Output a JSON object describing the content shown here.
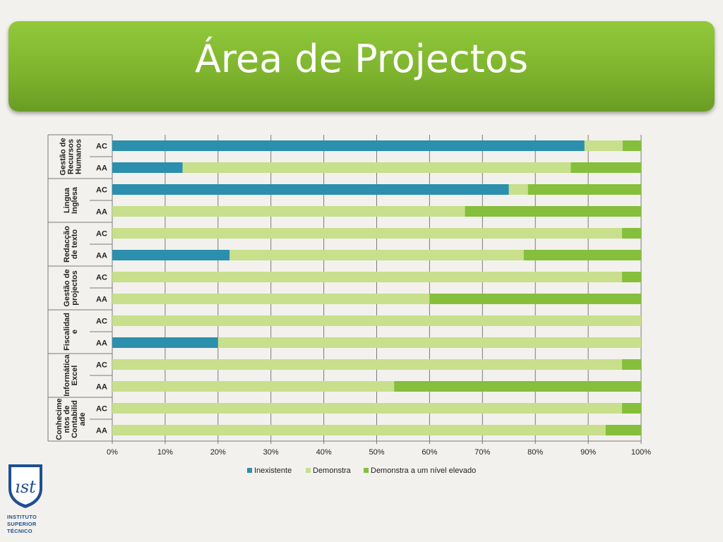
{
  "title": "Área de Projectos",
  "logo": {
    "monogram": "ıst",
    "lines": [
      "INSTITUTO",
      "SUPERIOR",
      "TÉCNICO"
    ]
  },
  "chart_data": {
    "type": "bar",
    "orientation": "horizontal",
    "stacked": "percent",
    "xlim": [
      0,
      100
    ],
    "x_ticks": [
      "0%",
      "10%",
      "20%",
      "30%",
      "40%",
      "50%",
      "60%",
      "70%",
      "80%",
      "90%",
      "100%"
    ],
    "grid": true,
    "legend_position": "bottom",
    "series": [
      {
        "name": "Inexistente",
        "color": "#2b8fad"
      },
      {
        "name": "Demonstra",
        "color": "#c8df8c"
      },
      {
        "name": "Demonstra a um nível elevado",
        "color": "#85bf3b"
      }
    ],
    "groups": [
      {
        "name_lines": [
          "Gestão de",
          "Recursos",
          "Humanos"
        ],
        "rows": [
          {
            "label": "AC",
            "values": [
              89.3,
              7.2,
              3.5
            ]
          },
          {
            "label": "AA",
            "values": [
              13.3,
              73.4,
              13.3
            ]
          }
        ]
      },
      {
        "name_lines": [
          "Lingua",
          "Inglesa"
        ],
        "rows": [
          {
            "label": "AC",
            "values": [
              75.0,
              3.6,
              21.4
            ]
          },
          {
            "label": "AA",
            "values": [
              0,
              66.7,
              33.3
            ]
          }
        ]
      },
      {
        "name_lines": [
          "Redacção",
          "de texto"
        ],
        "rows": [
          {
            "label": "AC",
            "values": [
              0,
              96.4,
              3.6
            ]
          },
          {
            "label": "AA",
            "values": [
              22.2,
              55.6,
              22.2
            ]
          }
        ]
      },
      {
        "name_lines": [
          "Gestão de",
          "projectos"
        ],
        "rows": [
          {
            "label": "AC",
            "values": [
              0,
              96.4,
              3.6
            ]
          },
          {
            "label": "AA",
            "values": [
              0,
              60.0,
              40.0
            ]
          }
        ]
      },
      {
        "name_lines": [
          "Fiscalidad",
          "e"
        ],
        "rows": [
          {
            "label": "AC",
            "values": [
              0,
              100,
              0
            ]
          },
          {
            "label": "AA",
            "values": [
              20.0,
              80.0,
              0
            ]
          }
        ]
      },
      {
        "name_lines": [
          "Informática",
          "Excel"
        ],
        "rows": [
          {
            "label": "AC",
            "values": [
              0,
              96.4,
              3.6
            ]
          },
          {
            "label": "AA",
            "values": [
              0,
              53.3,
              46.7
            ]
          }
        ]
      },
      {
        "name_lines": [
          "Conhecime",
          "ntos de",
          "Contabilid",
          "ade"
        ],
        "rows": [
          {
            "label": "AC",
            "values": [
              0,
              96.4,
              3.6
            ]
          },
          {
            "label": "AA",
            "values": [
              0,
              93.3,
              6.7
            ]
          }
        ]
      }
    ]
  }
}
